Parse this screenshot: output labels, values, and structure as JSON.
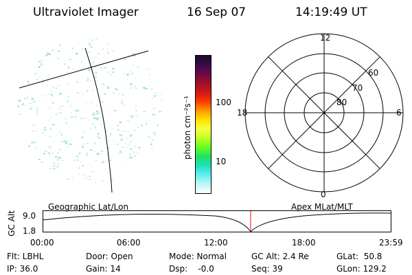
{
  "header": {
    "title": "Ultraviolet Imager",
    "date": "16 Sep 07",
    "time": "14:19:49 UT"
  },
  "colorbar": {
    "label": "photon cm⁻²s⁻¹",
    "ticks": [
      "100",
      "10"
    ],
    "colors": [
      "#1a0a2a",
      "#3a0a4a",
      "#6a0a4a",
      "#a0102a",
      "#d01818",
      "#ff3a00",
      "#ff9a00",
      "#ffe000",
      "#f6ff40",
      "#c0ff20",
      "#60ff20",
      "#20e060",
      "#20e0c0",
      "#60f0f0",
      "#c0f4f4",
      "#ffffff"
    ]
  },
  "polar": {
    "radial_labels": [
      "60",
      "70",
      "80"
    ],
    "mlt_labels": {
      "top": "12",
      "left": "18",
      "right": "6",
      "bottom": "0"
    }
  },
  "labels": {
    "left": "Geographic Lat/Lon",
    "right": "Apex  MLat/MLT"
  },
  "alt_plot": {
    "axis_label": "GC Alt",
    "y_ticks": [
      "9.0",
      "1.8"
    ],
    "x_ticks": [
      "00:00",
      "06:00",
      "12:00",
      "18:00",
      "23:59"
    ],
    "marker_color": "#ff0000"
  },
  "info": {
    "flt": "Flt: LBHL",
    "ip": "IP: 36.0",
    "door": "Door: Open",
    "gain": "Gain: 14",
    "mode": "Mode: Normal",
    "dsp": "Dsp:    -0.0",
    "gcalt": "GC Alt: 2.4 Re",
    "seq": "Seq: 39",
    "glat": "GLat:  50.8",
    "glon": "GLon: 129.2"
  }
}
